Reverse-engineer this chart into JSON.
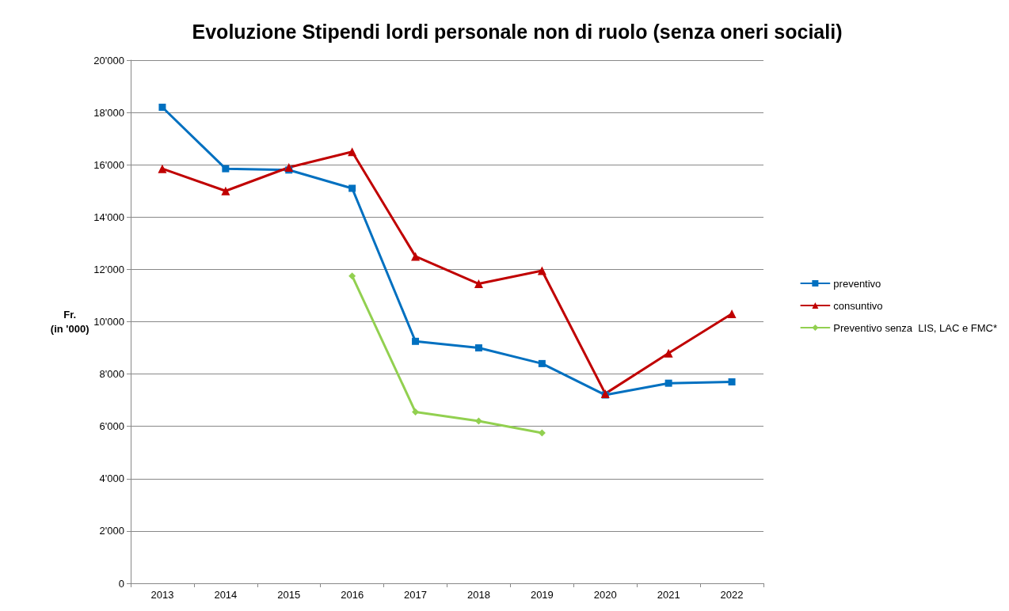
{
  "chart_data": {
    "type": "line",
    "title": "Evoluzione Stipendi lordi personale non di ruolo (senza oneri sociali)",
    "ylabel": "Fr.\n(in '000)",
    "categories": [
      "2013",
      "2014",
      "2015",
      "2016",
      "2017",
      "2018",
      "2019",
      "2020",
      "2021",
      "2022"
    ],
    "series": [
      {
        "name": "preventivo",
        "color": "#0070c0",
        "marker": "square",
        "values": [
          18200,
          15850,
          15800,
          15100,
          9250,
          9000,
          8400,
          7200,
          7650,
          7700
        ]
      },
      {
        "name": "consuntivo",
        "color": "#c00000",
        "marker": "triangle",
        "values": [
          15850,
          15000,
          15900,
          16500,
          12500,
          11450,
          11950,
          7250,
          8800,
          10300
        ]
      },
      {
        "name": "Preventivo senza  LIS, LAC e FMC*",
        "color": "#92d050",
        "marker": "diamond",
        "values": [
          null,
          null,
          null,
          11750,
          6550,
          6200,
          5750,
          null,
          null,
          null
        ]
      }
    ],
    "ylim": [
      0,
      20000
    ],
    "yticks": [
      0,
      {
        "value": 2000,
        "label": "2'000"
      },
      {
        "value": 4000,
        "label": "4'000"
      },
      {
        "value": 6000,
        "label": "6'000"
      },
      {
        "value": 8000,
        "label": "8'000"
      },
      {
        "value": 10000,
        "label": "10'000"
      },
      {
        "value": 12000,
        "label": "12'000"
      },
      {
        "value": 14000,
        "label": "14'000"
      },
      {
        "value": 16000,
        "label": "16'000"
      },
      {
        "value": 18000,
        "label": "18'000"
      },
      {
        "value": 20000,
        "label": "20'000"
      }
    ],
    "grid": "y",
    "legend": "right",
    "line_style": "solid"
  }
}
